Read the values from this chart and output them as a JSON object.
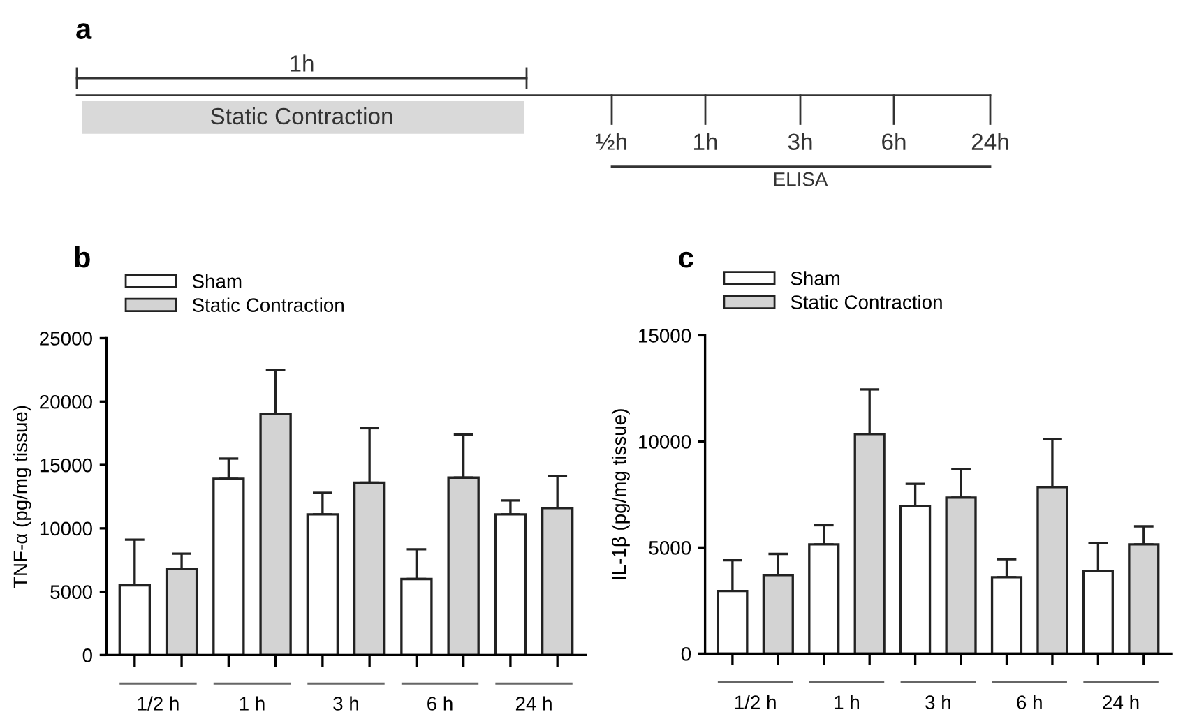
{
  "chart_data": [
    {
      "type": "other",
      "title": "a",
      "annotations": [
        "1h",
        "Static Contraction",
        "½h",
        "1h",
        "3h",
        "6h",
        "24h",
        "ELISA"
      ]
    },
    {
      "type": "bar",
      "title": "b",
      "ylabel": "TNF-α (pg/mg tissue)",
      "categories": [
        "1/2 h",
        "1 h",
        "3 h",
        "6 h",
        "24 h"
      ],
      "series": [
        {
          "name": "Sham",
          "color": "#ffffff",
          "values": [
            5500,
            13900,
            11100,
            6000,
            11100
          ],
          "errors": [
            [
              5500,
              9100
            ],
            [
              13900,
              15500
            ],
            [
              11100,
              12800
            ],
            [
              6000,
              8350
            ],
            [
              11100,
              12200
            ]
          ]
        },
        {
          "name": "Static Contraction",
          "color": "#d3d3d3",
          "values": [
            6800,
            19000,
            13600,
            14000,
            11600
          ],
          "errors": [
            [
              6800,
              8000
            ],
            [
              19000,
              22500
            ],
            [
              13600,
              17900
            ],
            [
              14000,
              17400
            ],
            [
              11600,
              14100
            ]
          ]
        }
      ],
      "ylim": [
        0,
        25000
      ],
      "yticks": [
        0,
        5000,
        10000,
        15000,
        20000,
        25000
      ],
      "grid": false,
      "legend": "top left"
    },
    {
      "type": "bar",
      "title": "c",
      "ylabel": "IL-1β (pg/mg tissue)",
      "categories": [
        "1/2 h",
        "1 h",
        "3 h",
        "6 h",
        "24 h"
      ],
      "series": [
        {
          "name": "Sham",
          "color": "#ffffff",
          "values": [
            2950,
            5150,
            6950,
            3600,
            3900
          ],
          "errors": [
            [
              2950,
              4400
            ],
            [
              5150,
              6050
            ],
            [
              6950,
              8000
            ],
            [
              3600,
              4450
            ],
            [
              3900,
              5200
            ]
          ]
        },
        {
          "name": "Static Contraction",
          "color": "#d3d3d3",
          "values": [
            3700,
            10350,
            7350,
            7850,
            5150
          ],
          "errors": [
            [
              3700,
              4700
            ],
            [
              10350,
              12450
            ],
            [
              7350,
              8700
            ],
            [
              7850,
              10100
            ],
            [
              5150,
              6000
            ]
          ]
        }
      ],
      "ylim": [
        0,
        15000
      ],
      "yticks": [
        0,
        5000,
        10000,
        15000
      ],
      "grid": false,
      "legend": "top left"
    }
  ]
}
